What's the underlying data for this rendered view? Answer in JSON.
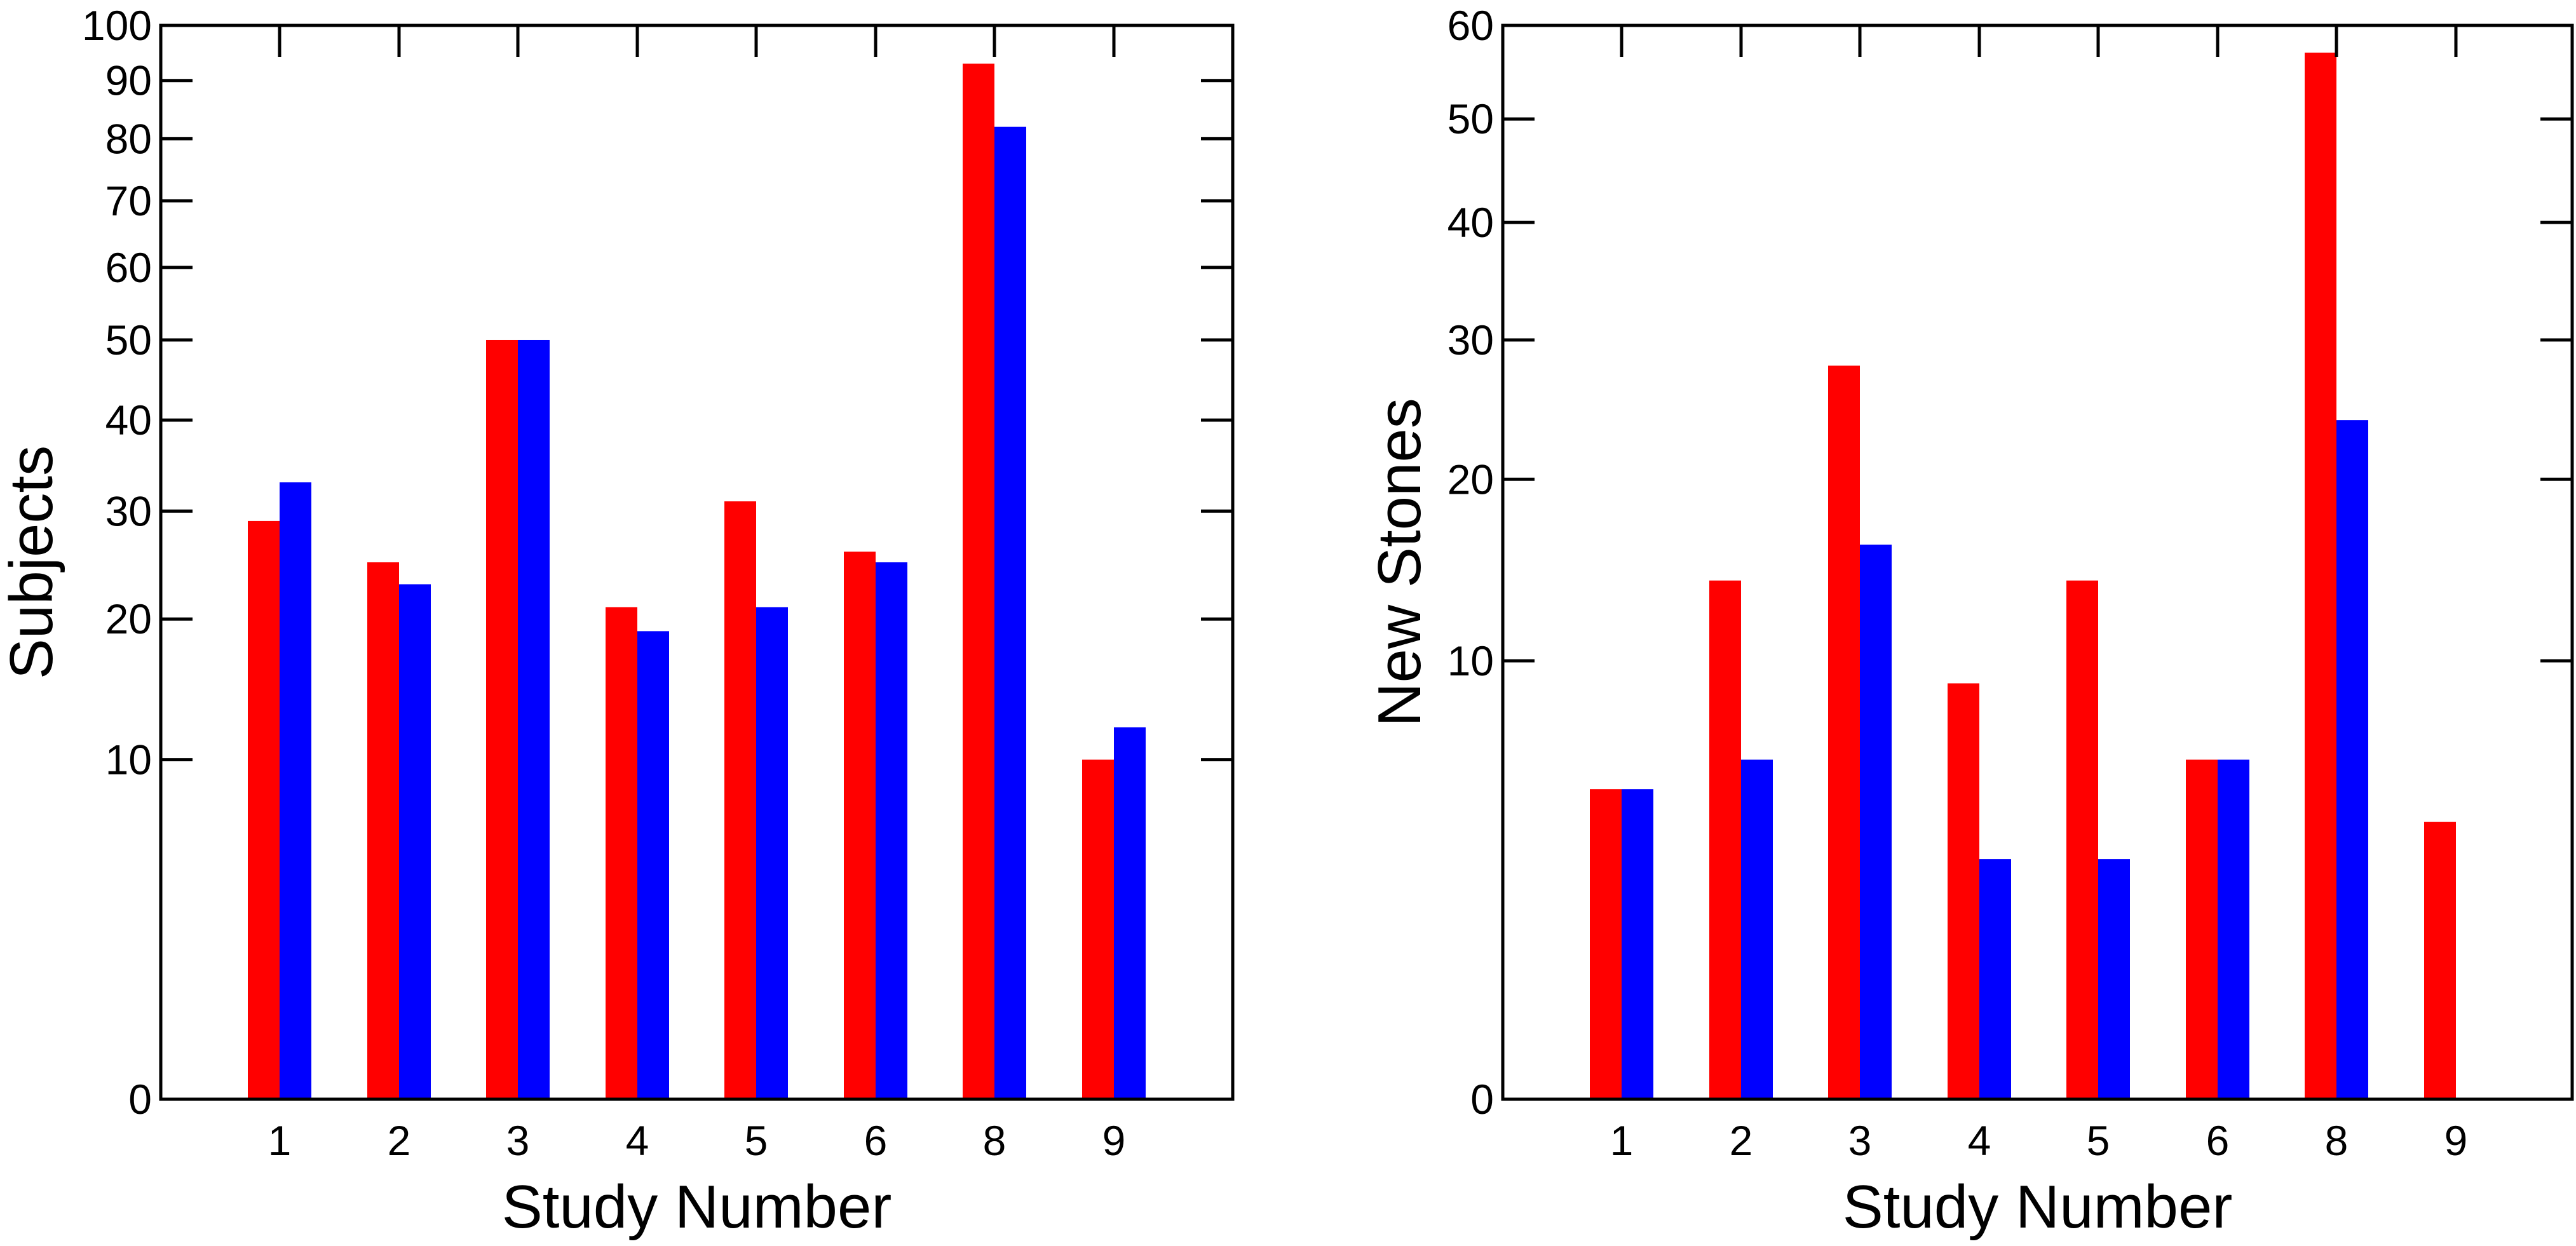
{
  "chart_data": [
    {
      "type": "bar",
      "xlabel": "Study Number",
      "ylabel": "Subjects",
      "categories": [
        "1",
        "2",
        "3",
        "4",
        "5",
        "6",
        "8",
        "9"
      ],
      "yscale": "sqrt",
      "ylim": [
        0,
        100
      ],
      "yticks": [
        "0",
        "10",
        "20",
        "30",
        "40",
        "50",
        "60",
        "70",
        "80",
        "90",
        "100"
      ],
      "ytick_values": [
        0,
        10,
        20,
        30,
        40,
        50,
        60,
        70,
        80,
        90,
        100
      ],
      "series": [
        {
          "color": "#ff0000",
          "values": [
            29,
            25,
            50,
            21,
            31,
            26,
            93,
            10
          ]
        },
        {
          "color": "#0000ff",
          "values": [
            33,
            23,
            50,
            19,
            21,
            25,
            82,
            12
          ]
        }
      ],
      "grid": false,
      "legend": "none"
    },
    {
      "type": "bar",
      "xlabel": "Study Number",
      "ylabel": "New Stones",
      "categories": [
        "1",
        "2",
        "3",
        "4",
        "5",
        "6",
        "8",
        "9"
      ],
      "yscale": "sqrt",
      "ylim": [
        0,
        60
      ],
      "yticks": [
        "0",
        "10",
        "20",
        "30",
        "40",
        "50",
        "60"
      ],
      "ytick_values": [
        0,
        10,
        20,
        30,
        40,
        50,
        60
      ],
      "series": [
        {
          "color": "#ff0000",
          "values": [
            5,
            14,
            28,
            9,
            14,
            6,
            57,
            4
          ]
        },
        {
          "color": "#0000ff",
          "values": [
            5,
            6,
            16,
            3,
            3,
            6,
            24,
            0
          ]
        }
      ],
      "grid": false,
      "legend": "none"
    }
  ]
}
